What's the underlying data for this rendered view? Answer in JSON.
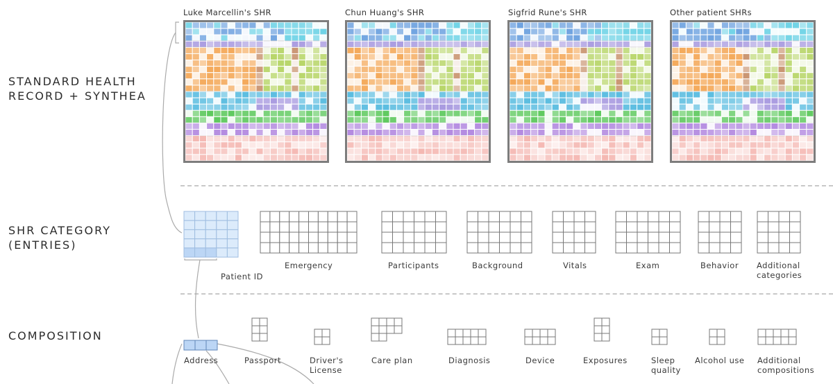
{
  "row_labels": {
    "standard": [
      "STANDARD HEALTH",
      "RECORD + SYNTHEA"
    ],
    "category": [
      "SHR CATEGORY",
      "(ENTRIES)"
    ],
    "composition": [
      "COMPOSITION"
    ]
  },
  "panels": [
    {
      "title": "Luke Marcellin's SHR"
    },
    {
      "title": "Chun Huang's SHR"
    },
    {
      "title": "Sigfrid Rune's SHR"
    },
    {
      "title": "Other patient SHRs"
    }
  ],
  "categories": [
    {
      "label": "Patient ID",
      "cols": 5,
      "rows": 5,
      "highlighted": true
    },
    {
      "label": "Emergency",
      "cols": 10,
      "rows": 4
    },
    {
      "label": "Participants",
      "cols": 6,
      "rows": 4
    },
    {
      "label": "Background",
      "cols": 6,
      "rows": 4
    },
    {
      "label": "Vitals",
      "cols": 4,
      "rows": 4
    },
    {
      "label": "Exam",
      "cols": 6,
      "rows": 4
    },
    {
      "label": "Behavior",
      "cols": 4,
      "rows": 4
    },
    {
      "label": "Additional categories",
      "cols": 4,
      "rows": 4
    }
  ],
  "compositions": [
    {
      "label": "Address",
      "highlighted": true
    },
    {
      "label": "Passport"
    },
    {
      "label": "Driver's License"
    },
    {
      "label": "Care plan"
    },
    {
      "label": "Diagnosis"
    },
    {
      "label": "Device"
    },
    {
      "label": "Exposures"
    },
    {
      "label": "Sleep quality"
    },
    {
      "label": "Alcohol use"
    },
    {
      "label": "Additional compositions"
    }
  ],
  "colors": {
    "blue": "#6fa3e0",
    "cyan": "#6fd3e6",
    "lavender": "#a99be0",
    "orange": "#f4a95a",
    "brown": "#c99470",
    "lime": "#b8d66a",
    "sky": "#5bbde0",
    "green": "#5ec95e",
    "purple": "#b38ae0",
    "pink": "#f09a92",
    "panel_border": "#7d7d7d",
    "grid_line": "#777777",
    "highlight_fill": "#dcebfb",
    "highlight_stroke": "#9fbde0"
  }
}
